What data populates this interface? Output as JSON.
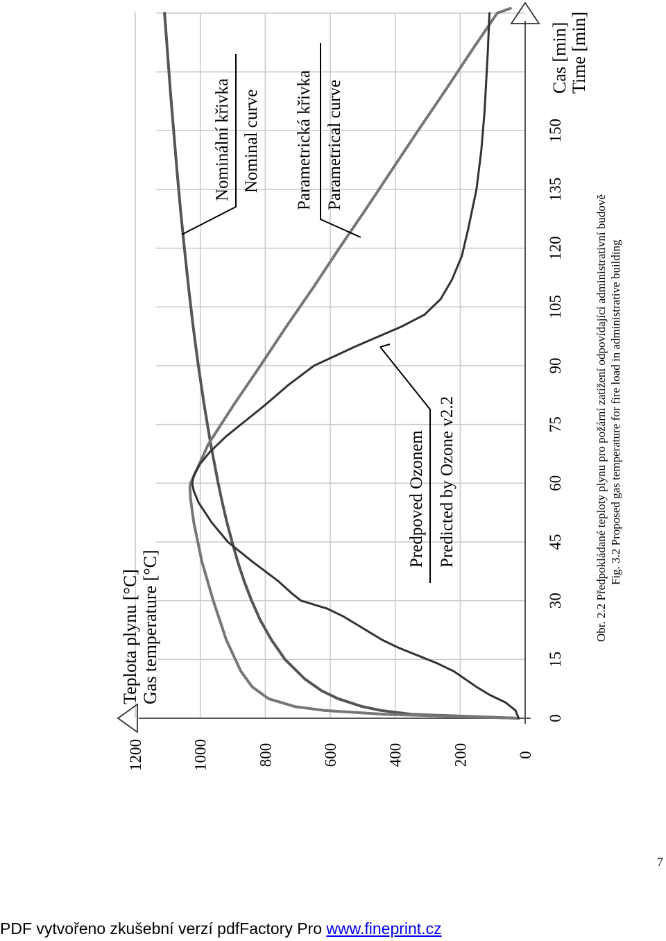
{
  "chart_data": {
    "type": "line",
    "y_title": [
      "Teplota plynu [°C]",
      "Gas temperature [°C]"
    ],
    "x_title": [
      "Cas [min]",
      "Time [min]"
    ],
    "x_ticks": [
      "0",
      "15",
      "30",
      "45",
      "60",
      "75",
      "90",
      "105",
      "120",
      "135",
      "150"
    ],
    "y_ticks": [
      "0",
      "200",
      "400",
      "600",
      "800",
      "1000",
      "1200"
    ],
    "xlim": [
      0,
      180
    ],
    "ylim": [
      0,
      1200
    ],
    "grid": true,
    "series": [
      {
        "name": "Nominal curve",
        "label_cz": "Nominální křivka",
        "label_en": "Nominal curve",
        "color": "#555555",
        "points": [
          [
            0,
            20
          ],
          [
            1,
            349
          ],
          [
            2,
            445
          ],
          [
            3,
            502
          ],
          [
            5,
            576
          ],
          [
            7,
            626
          ],
          [
            10,
            678
          ],
          [
            15,
            739
          ],
          [
            20,
            781
          ],
          [
            25,
            815
          ],
          [
            30,
            842
          ],
          [
            35,
            865
          ],
          [
            40,
            885
          ],
          [
            45,
            902
          ],
          [
            50,
            918
          ],
          [
            55,
            932
          ],
          [
            60,
            945
          ],
          [
            70,
            968
          ],
          [
            80,
            988
          ],
          [
            90,
            1006
          ],
          [
            100,
            1022
          ],
          [
            110,
            1036
          ],
          [
            120,
            1049
          ],
          [
            130,
            1061
          ],
          [
            140,
            1072
          ],
          [
            150,
            1082
          ],
          [
            160,
            1092
          ],
          [
            170,
            1101
          ],
          [
            180,
            1110
          ]
        ]
      },
      {
        "name": "Parametrical curve",
        "label_cz": "Parametrická křivka",
        "label_en": "Parametrical curve",
        "color": "#777777",
        "points": [
          [
            0,
            20
          ],
          [
            1,
            430
          ],
          [
            2,
            620
          ],
          [
            3,
            710
          ],
          [
            5,
            790
          ],
          [
            8,
            840
          ],
          [
            12,
            875
          ],
          [
            20,
            920
          ],
          [
            30,
            960
          ],
          [
            40,
            995
          ],
          [
            50,
            1020
          ],
          [
            56,
            1030
          ],
          [
            59,
            1032
          ],
          [
            60,
            1030
          ],
          [
            70,
            975
          ],
          [
            80,
            897
          ],
          [
            90,
            815
          ],
          [
            100,
            735
          ],
          [
            110,
            652
          ],
          [
            120,
            572
          ],
          [
            130,
            490
          ],
          [
            140,
            410
          ],
          [
            150,
            330
          ],
          [
            160,
            248
          ],
          [
            170,
            168
          ],
          [
            180,
            86
          ],
          [
            185,
            45
          ]
        ]
      },
      {
        "name": "Predicted by Ozone v2.2",
        "label_cz": "Predpoved Ozonem",
        "label_en": "Predicted by Ozone v2.2",
        "color": "#333333",
        "points": [
          [
            0,
            20
          ],
          [
            2,
            30
          ],
          [
            4,
            60
          ],
          [
            6,
            110
          ],
          [
            8,
            150
          ],
          [
            10,
            185
          ],
          [
            12,
            220
          ],
          [
            14,
            270
          ],
          [
            16,
            330
          ],
          [
            18,
            390
          ],
          [
            20,
            440
          ],
          [
            22,
            480
          ],
          [
            24,
            520
          ],
          [
            26,
            560
          ],
          [
            28,
            610
          ],
          [
            30,
            690
          ],
          [
            32,
            720
          ],
          [
            35,
            760
          ],
          [
            40,
            840
          ],
          [
            45,
            915
          ],
          [
            50,
            965
          ],
          [
            55,
            1005
          ],
          [
            58,
            1020
          ],
          [
            60,
            1025
          ],
          [
            62,
            1020
          ],
          [
            65,
            1000
          ],
          [
            68,
            970
          ],
          [
            72,
            920
          ],
          [
            76,
            860
          ],
          [
            80,
            800
          ],
          [
            85,
            730
          ],
          [
            90,
            650
          ],
          [
            95,
            520
          ],
          [
            100,
            380
          ],
          [
            103,
            310
          ],
          [
            107,
            260
          ],
          [
            112,
            225
          ],
          [
            118,
            195
          ],
          [
            125,
            175
          ],
          [
            135,
            150
          ],
          [
            145,
            135
          ],
          [
            155,
            125
          ],
          [
            170,
            115
          ],
          [
            180,
            110
          ]
        ]
      }
    ],
    "annotations": {
      "nominal": [
        "Nominální křivka",
        "Nominal curve"
      ],
      "parametrical": [
        "Parametrická křivka",
        "Parametrical curve"
      ],
      "ozone": [
        "Predpoved Ozonem",
        "Predicted by Ozone v2.2"
      ]
    }
  },
  "caption": {
    "cz": "Obr. 2.2 Předpokládané teploty plynu pro požární zatížení odpovídající administrativní budově",
    "en": "Fig. 3.2 Proposed gas temperature for fire load in administrative building"
  },
  "page_number": "7",
  "footer": {
    "text": "PDF vytvořeno zkušební verzí pdfFactory Pro ",
    "link": "www.fineprint.cz"
  }
}
